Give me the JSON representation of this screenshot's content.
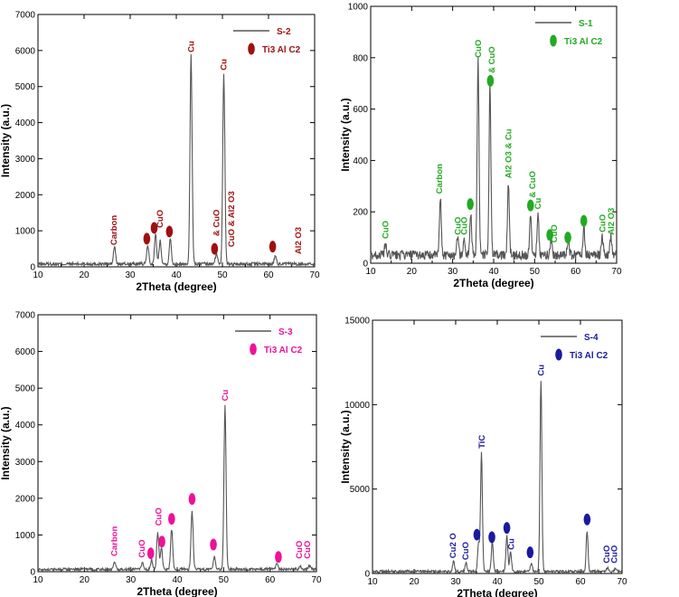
{
  "chart_data": [
    {
      "id": "S-2",
      "type": "line",
      "xlabel": "2Theta (degree)",
      "ylabel": "Intensity (a.u.)",
      "xlim": [
        10,
        70
      ],
      "ylim": [
        0,
        7000
      ],
      "xticks": [
        10,
        20,
        30,
        40,
        50,
        60,
        70
      ],
      "yticks": [
        0,
        1000,
        2000,
        3000,
        4000,
        5000,
        6000,
        7000
      ],
      "legend": {
        "line_label": "S-2",
        "marker_label": "Ti3 Al C2",
        "position": "top-right"
      },
      "colors": {
        "line": "#555555",
        "accent": "#a01010"
      },
      "noise": 100,
      "peaks": [
        {
          "x": 26.6,
          "y": 480
        },
        {
          "x": 33.8,
          "y": 520
        },
        {
          "x": 35.5,
          "y": 800
        },
        {
          "x": 36.5,
          "y": 650
        },
        {
          "x": 38.7,
          "y": 700
        },
        {
          "x": 43.2,
          "y": 5800
        },
        {
          "x": 48.7,
          "y": 300
        },
        {
          "x": 50.3,
          "y": 5300
        },
        {
          "x": 61.5,
          "y": 250
        }
      ],
      "markers": [
        {
          "x": 33.6,
          "y": 780
        },
        {
          "x": 35.2,
          "y": 1080
        },
        {
          "x": 38.5,
          "y": 980
        },
        {
          "x": 48.3,
          "y": 500
        },
        {
          "x": 60.9,
          "y": 560
        }
      ],
      "annotations": [
        {
          "text": "Carbon",
          "x": 26.5,
          "y": 600
        },
        {
          "text": "CuO",
          "x": 36.5,
          "y": 1080
        },
        {
          "text": "Cu",
          "x": 43.2,
          "y": 5950
        },
        {
          "text": "& CuO",
          "x": 48.7,
          "y": 850
        },
        {
          "text": "Cu",
          "x": 50.3,
          "y": 5450
        },
        {
          "text": "CuO & Al2 O3",
          "x": 52.0,
          "y": 550
        },
        {
          "text": "Al2 O3",
          "x": 66.5,
          "y": 350
        }
      ]
    },
    {
      "id": "S-1",
      "type": "line",
      "xlabel": "2Theta (degree)",
      "ylabel": "Intensity (a.u.)",
      "xlim": [
        10,
        70
      ],
      "ylim": [
        0,
        1000
      ],
      "xticks": [
        10,
        20,
        30,
        40,
        50,
        60,
        70
      ],
      "yticks": [
        0,
        200,
        400,
        600,
        800,
        1000
      ],
      "legend": {
        "line_label": "S-1",
        "marker_label": "Ti3 Al C2",
        "position": "top-right"
      },
      "colors": {
        "line": "#555555",
        "accent": "#22aa22"
      },
      "noise": 40,
      "peaks": [
        {
          "x": 13.6,
          "y": 40
        },
        {
          "x": 27.0,
          "y": 220
        },
        {
          "x": 31.2,
          "y": 70
        },
        {
          "x": 32.8,
          "y": 60
        },
        {
          "x": 34.4,
          "y": 160
        },
        {
          "x": 36.2,
          "y": 760
        },
        {
          "x": 39.1,
          "y": 660
        },
        {
          "x": 43.6,
          "y": 280
        },
        {
          "x": 49.0,
          "y": 160
        },
        {
          "x": 50.8,
          "y": 160
        },
        {
          "x": 54.0,
          "y": 60
        },
        {
          "x": 58.2,
          "y": 60
        },
        {
          "x": 62.0,
          "y": 110
        },
        {
          "x": 66.5,
          "y": 70
        },
        {
          "x": 68.6,
          "y": 70
        }
      ],
      "markers": [
        {
          "x": 34.3,
          "y": 230
        },
        {
          "x": 39.2,
          "y": 710
        },
        {
          "x": 49.0,
          "y": 225
        },
        {
          "x": 53.7,
          "y": 110
        },
        {
          "x": 58.1,
          "y": 100
        },
        {
          "x": 62.0,
          "y": 165
        }
      ],
      "annotations": [
        {
          "text": "CuO",
          "x": 13.6,
          "y": 95
        },
        {
          "text": "Carbon",
          "x": 26.8,
          "y": 270
        },
        {
          "text": "CuO",
          "x": 31.3,
          "y": 110
        },
        {
          "text": "CuO",
          "x": 32.8,
          "y": 110
        },
        {
          "text": "CuO",
          "x": 36.2,
          "y": 800
        },
        {
          "text": "& CuO",
          "x": 39.6,
          "y": 740
        },
        {
          "text": "Al2 O3 & Cu",
          "x": 43.6,
          "y": 330
        },
        {
          "text": "& CuO",
          "x": 49.5,
          "y": 255
        },
        {
          "text": "Cu",
          "x": 50.8,
          "y": 210
        },
        {
          "text": "CuO",
          "x": 54.8,
          "y": 80
        },
        {
          "text": "CuO",
          "x": 66.6,
          "y": 120
        },
        {
          "text": "Al2 O3",
          "x": 68.7,
          "y": 110
        }
      ]
    },
    {
      "id": "S-3",
      "type": "line",
      "xlabel": "2Theta (degree)",
      "ylabel": "Intensity (a.u.)",
      "xlim": [
        10,
        70
      ],
      "ylim": [
        0,
        7000
      ],
      "xticks": [
        10,
        20,
        30,
        40,
        50,
        60,
        70
      ],
      "yticks": [
        0,
        1000,
        2000,
        3000,
        4000,
        5000,
        6000,
        7000
      ],
      "legend": {
        "line_label": "S-3",
        "marker_label": "Ti3 Al C2",
        "position": "top-right"
      },
      "colors": {
        "line": "#555555",
        "accent": "#ee1199"
      },
      "noise": 80,
      "peaks": [
        {
          "x": 26.5,
          "y": 200
        },
        {
          "x": 32.5,
          "y": 180
        },
        {
          "x": 34.5,
          "y": 250
        },
        {
          "x": 35.8,
          "y": 1000
        },
        {
          "x": 36.6,
          "y": 600
        },
        {
          "x": 38.8,
          "y": 1100
        },
        {
          "x": 43.2,
          "y": 1600
        },
        {
          "x": 48.0,
          "y": 350
        },
        {
          "x": 50.3,
          "y": 4450
        },
        {
          "x": 61.5,
          "y": 150
        },
        {
          "x": 66.5,
          "y": 100
        },
        {
          "x": 68.5,
          "y": 100
        }
      ],
      "markers": [
        {
          "x": 34.3,
          "y": 500
        },
        {
          "x": 36.7,
          "y": 820
        },
        {
          "x": 38.8,
          "y": 1440
        },
        {
          "x": 43.2,
          "y": 1980
        },
        {
          "x": 47.8,
          "y": 740
        },
        {
          "x": 61.8,
          "y": 400
        }
      ],
      "annotations": [
        {
          "text": "Carbon",
          "x": 26.5,
          "y": 420
        },
        {
          "text": "CuO",
          "x": 32.4,
          "y": 380
        },
        {
          "text": "CuO",
          "x": 36.0,
          "y": 1250
        },
        {
          "text": "Cu",
          "x": 50.3,
          "y": 4650
        },
        {
          "text": "CuO",
          "x": 66.3,
          "y": 350
        },
        {
          "text": "CuO",
          "x": 68.1,
          "y": 350
        }
      ]
    },
    {
      "id": "S-4",
      "type": "line",
      "xlabel": "2Theta (degree)",
      "ylabel": "Intensity (a.u.)",
      "xlim": [
        10,
        70
      ],
      "ylim": [
        0,
        15000
      ],
      "xticks": [
        10,
        20,
        30,
        40,
        50,
        60,
        70
      ],
      "yticks": [
        0,
        5000,
        10000,
        15000
      ],
      "legend": {
        "line_label": "S-4",
        "marker_label": "Ti3 Al C2",
        "position": "top-right"
      },
      "colors": {
        "line": "#555555",
        "accent": "#1a1aa0"
      },
      "noise": 150,
      "peaks": [
        {
          "x": 29.5,
          "y": 600
        },
        {
          "x": 32.5,
          "y": 500
        },
        {
          "x": 35.5,
          "y": 1700
        },
        {
          "x": 36.2,
          "y": 7000
        },
        {
          "x": 38.8,
          "y": 1800
        },
        {
          "x": 42.3,
          "y": 2100
        },
        {
          "x": 43.2,
          "y": 1200
        },
        {
          "x": 48.2,
          "y": 500
        },
        {
          "x": 50.5,
          "y": 11300
        },
        {
          "x": 61.6,
          "y": 2400
        },
        {
          "x": 66.5,
          "y": 200
        },
        {
          "x": 68.5,
          "y": 200
        }
      ],
      "markers": [
        {
          "x": 35.1,
          "y": 2300
        },
        {
          "x": 38.7,
          "y": 2150
        },
        {
          "x": 42.3,
          "y": 2700
        },
        {
          "x": 47.9,
          "y": 1250
        },
        {
          "x": 61.6,
          "y": 3200
        }
      ],
      "annotations": [
        {
          "text": "Cu2 O",
          "x": 29.4,
          "y": 900
        },
        {
          "text": "CuO",
          "x": 32.4,
          "y": 800
        },
        {
          "text": "TiC",
          "x": 36.3,
          "y": 7400
        },
        {
          "text": "Cu",
          "x": 43.4,
          "y": 1400
        },
        {
          "text": "Cu",
          "x": 50.5,
          "y": 11700
        },
        {
          "text": "CuO",
          "x": 66.3,
          "y": 600
        },
        {
          "text": "CuO",
          "x": 68.1,
          "y": 600
        }
      ]
    }
  ]
}
